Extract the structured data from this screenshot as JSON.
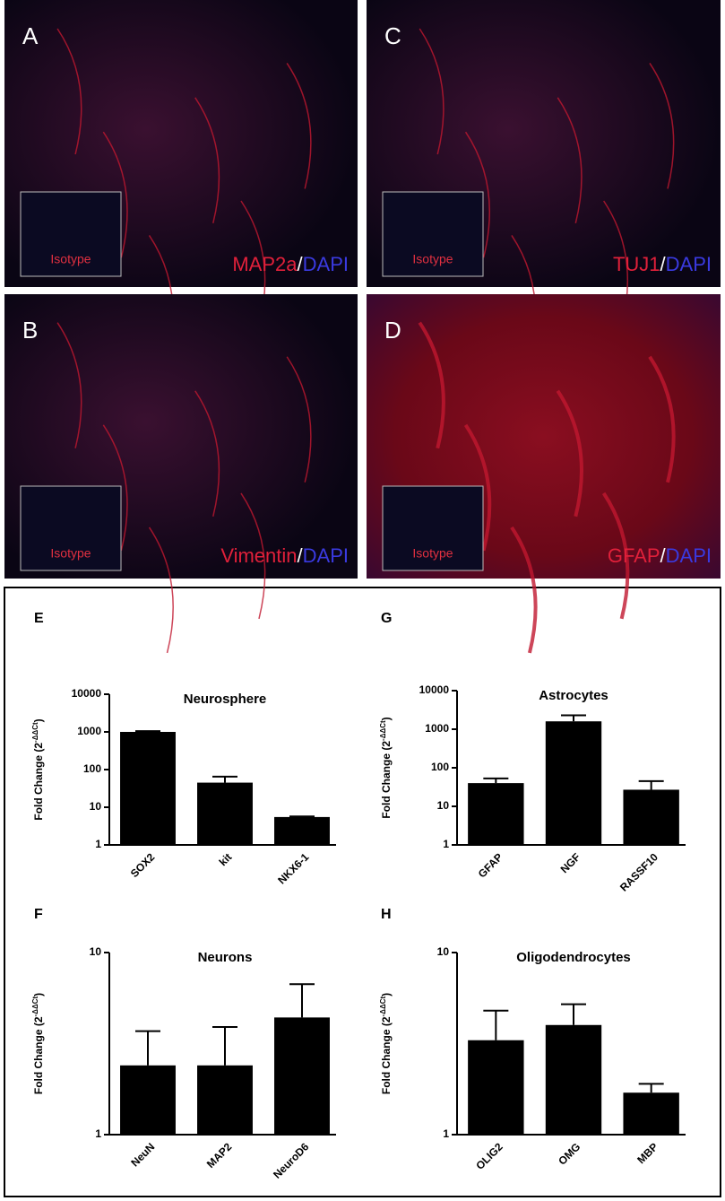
{
  "panels": [
    {
      "letter": "A",
      "inset": "Isotype",
      "stain": [
        "MAP2a",
        "/",
        "DAPI"
      ]
    },
    {
      "letter": "C",
      "inset": "Isotype",
      "stain": [
        "TUJ1",
        "/",
        "DAPI"
      ]
    },
    {
      "letter": "B",
      "inset": "Isotype",
      "stain": [
        "Vimentin",
        "/",
        "DAPI"
      ]
    },
    {
      "letter": "D",
      "inset": "Isotype",
      "stain": [
        "GFAP",
        "/",
        "DAPI"
      ]
    }
  ],
  "chart_data": [
    {
      "type": "bar",
      "label": "E",
      "title": "Neurosphere",
      "ylabel_parts": [
        "Fold Change (2",
        "-ΔΔCt",
        ")"
      ],
      "categories": [
        "SOX2",
        "kit",
        "NKX6-1"
      ],
      "values": [
        1000,
        45,
        5.5
      ],
      "errors": [
        50,
        20,
        0.2
      ],
      "color": "#000000",
      "log": true,
      "ylim": [
        1,
        10000
      ],
      "yticks": [
        1,
        10,
        100,
        1000,
        10000
      ]
    },
    {
      "type": "bar",
      "label": "G",
      "title": "Astrocytes",
      "ylabel_parts": [
        "Fold Change (2",
        "-ΔΔCt",
        ")"
      ],
      "categories": [
        "GFAP",
        "NGF",
        "RASSF10"
      ],
      "values": [
        40,
        1600,
        27
      ],
      "errors": [
        13,
        700,
        18
      ],
      "color": "#000000",
      "log": true,
      "ylim": [
        1,
        10000
      ],
      "yticks": [
        1,
        10,
        100,
        1000,
        10000
      ]
    },
    {
      "type": "bar",
      "label": "F",
      "title": "Neurons",
      "ylabel_parts": [
        "Fold Change (2",
        "-ΔΔCt",
        ")"
      ],
      "categories": [
        "NeuN",
        "MAP2",
        "NeuroD6"
      ],
      "values": [
        2.4,
        2.4,
        4.4
      ],
      "errors": [
        1.3,
        1.5,
        2.3
      ],
      "color": "#000000",
      "log": true,
      "ylim": [
        1,
        10
      ],
      "yticks": [
        1,
        10
      ]
    },
    {
      "type": "bar",
      "label": "H",
      "title": "Oligodendrocytes",
      "ylabel_parts": [
        "Fold Change (2",
        "-ΔΔCt",
        ")"
      ],
      "categories": [
        "OLIG2",
        "OMG",
        "MBP"
      ],
      "values": [
        3.3,
        4.0,
        1.7
      ],
      "errors": [
        1.5,
        1.2,
        0.2
      ],
      "color": "#000000",
      "log": true,
      "ylim": [
        1,
        10
      ],
      "yticks": [
        1,
        10
      ]
    }
  ]
}
